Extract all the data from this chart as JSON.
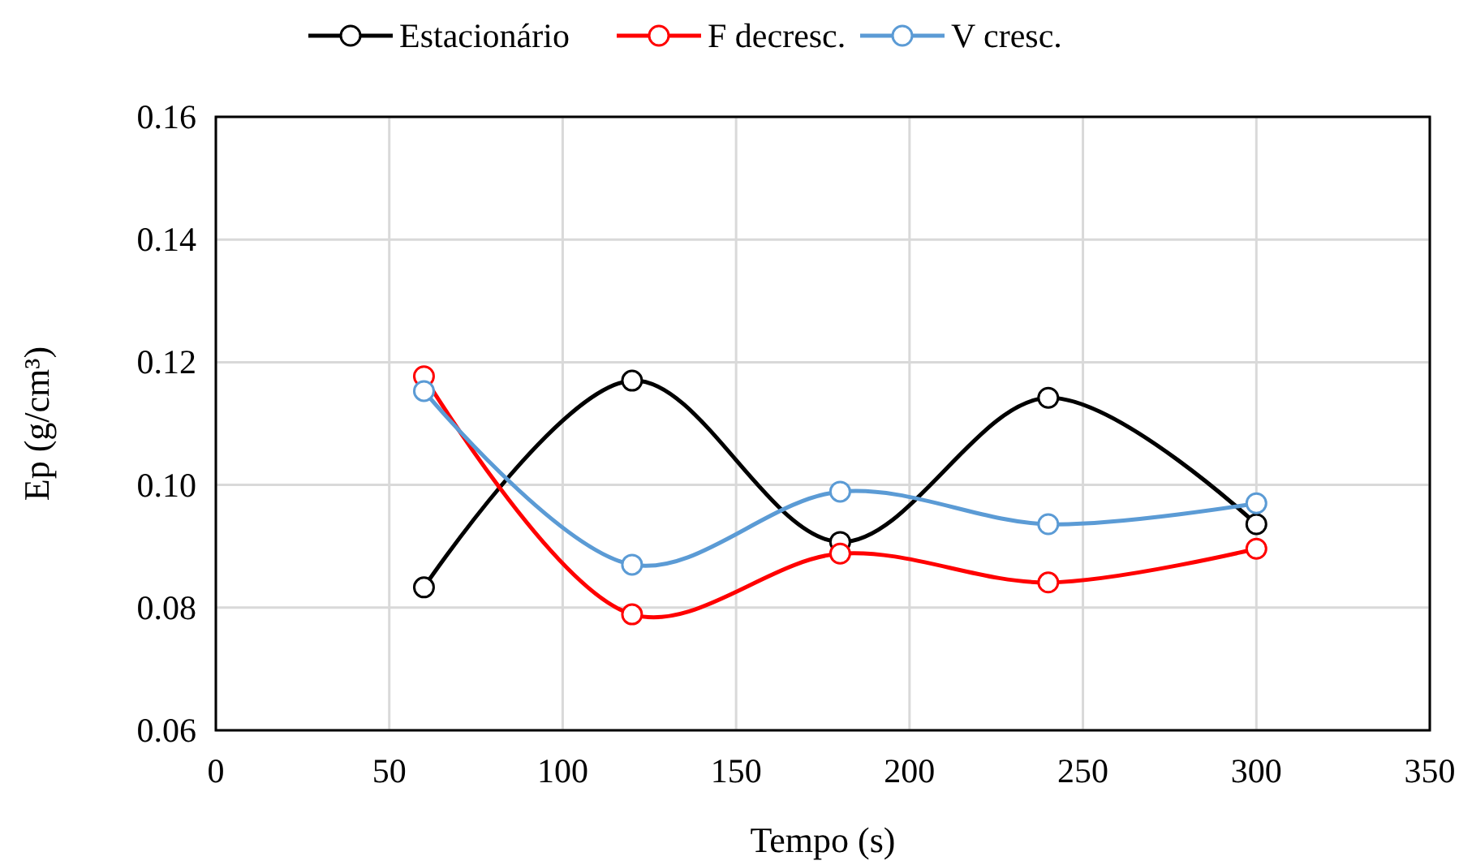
{
  "chart_data": {
    "type": "line",
    "xlabel": "Tempo (s)",
    "ylabel": "Ep (g/cm³)",
    "x": [
      60,
      120,
      180,
      240,
      300
    ],
    "series": [
      {
        "name": "Estacionário",
        "color": "#000000",
        "values": [
          0.0833,
          0.117,
          0.0907,
          0.1142,
          0.0936
        ]
      },
      {
        "name": "F decresc.",
        "color": "#ff0000",
        "values": [
          0.1177,
          0.0789,
          0.0888,
          0.0841,
          0.0896
        ]
      },
      {
        "name": "V cresc.",
        "color": "#5b9bd5",
        "values": [
          0.1153,
          0.087,
          0.0989,
          0.0936,
          0.097
        ]
      }
    ],
    "xlim": [
      0,
      350
    ],
    "xticks": [
      0,
      50,
      100,
      150,
      200,
      250,
      300,
      350
    ],
    "ylim": [
      0.06,
      0.16
    ],
    "yticks": [
      {
        "value": 0.06,
        "label": "0.06"
      },
      {
        "value": 0.08,
        "label": "0.08"
      },
      {
        "value": 0.1,
        "label": "0.10"
      },
      {
        "value": 0.12,
        "label": "0.12"
      },
      {
        "value": 0.14,
        "label": "0.14"
      },
      {
        "value": 0.16,
        "label": "0.16"
      }
    ],
    "grid": true,
    "legend": "top",
    "marker": "circle",
    "line_style": "solid"
  }
}
